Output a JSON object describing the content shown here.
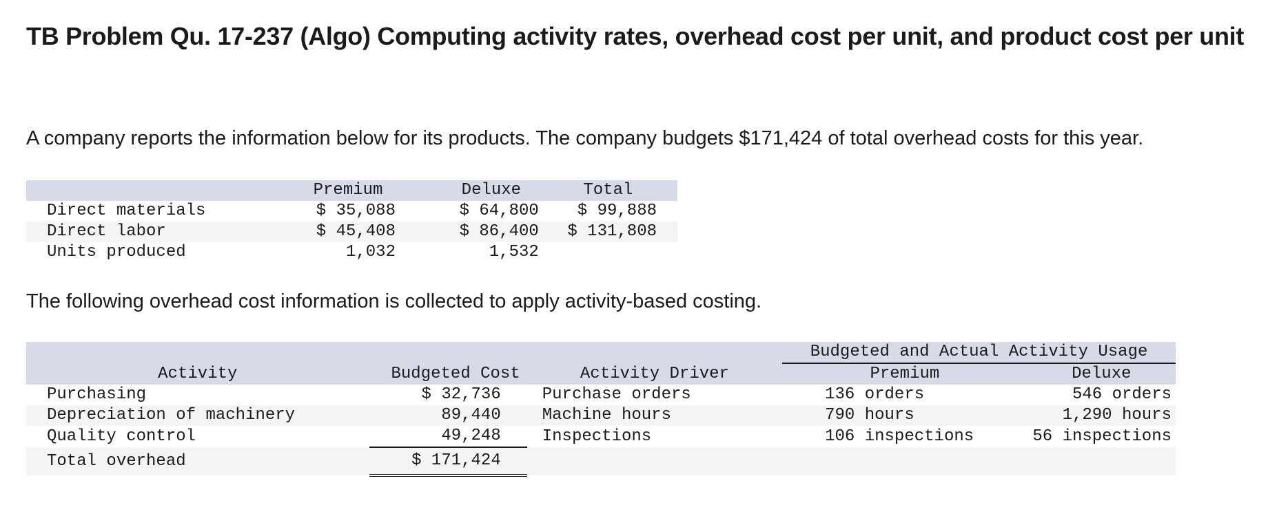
{
  "title": "TB Problem Qu. 17-237 (Algo) Computing activity rates, overhead cost per unit, and product cost per unit",
  "intro": "A company reports the information below for its products. The company budgets $171,424 of total overhead costs for this year.",
  "product_table": {
    "headers": [
      "",
      "Premium",
      "Deluxe",
      "Total"
    ],
    "rows": [
      {
        "label": "Direct materials",
        "premium": "$ 35,088",
        "deluxe": "$ 64,800",
        "total": "$ 99,888"
      },
      {
        "label": "Direct labor",
        "premium": "$ 45,408",
        "deluxe": "$ 86,400",
        "total": "$ 131,808"
      },
      {
        "label": "Units produced",
        "premium": "1,032",
        "deluxe": "1,532",
        "total": ""
      }
    ]
  },
  "overhead_intro": "The following overhead cost information is collected to apply activity-based costing.",
  "activity_table": {
    "group_header": "Budgeted and Actual Activity Usage",
    "headers": [
      "Activity",
      "Budgeted Cost",
      "Activity Driver",
      "Premium",
      "Deluxe"
    ],
    "rows": [
      {
        "activity": "Purchasing",
        "cost": "$ 32,736",
        "driver": "Purchase orders",
        "premium": "136 orders",
        "deluxe": "546 orders"
      },
      {
        "activity": "Depreciation of machinery",
        "cost": "89,440",
        "driver": "Machine hours",
        "premium": "790 hours",
        "deluxe": "1,290 hours"
      },
      {
        "activity": "Quality control",
        "cost": "49,248",
        "driver": "Inspections",
        "premium": "106 inspections",
        "deluxe": "56 inspections"
      }
    ],
    "total": {
      "label": "Total overhead",
      "cost": "$ 171,424"
    }
  }
}
